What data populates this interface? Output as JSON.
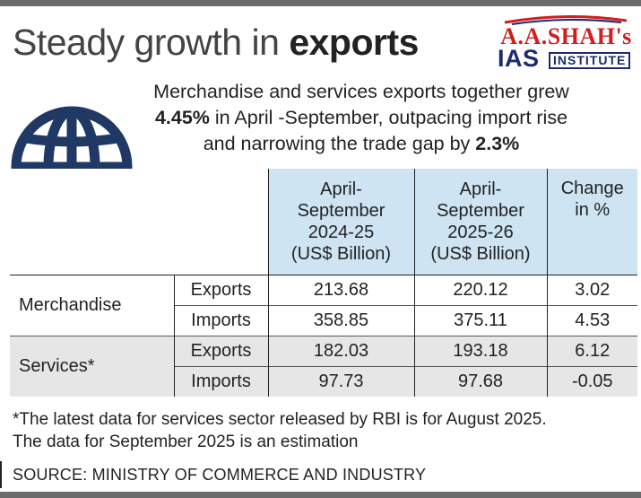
{
  "title": {
    "light": "Steady growth in",
    "bold": "exports"
  },
  "logo": {
    "top": "A.A.SHAH's",
    "ias": "IAS",
    "institute": "INSTITUTE"
  },
  "subtitle": {
    "line1": "Merchandise and services exports together grew",
    "pct1": "4.45%",
    "line2": " in April -September, outpacing import rise",
    "line3": "and narrowing the trade gap by ",
    "pct2": "2.3%"
  },
  "icon": "globe-with-exchange-arrows-icon",
  "chart_data": {
    "type": "table",
    "columns": [
      [
        "April-",
        "September",
        "2024-25",
        "(US$ Billion)"
      ],
      [
        "April-",
        "September",
        "2025-26",
        "(US$ Billion)"
      ],
      [
        "Change",
        "in %"
      ]
    ],
    "rows": [
      {
        "category": "Merchandise",
        "sub": "Exports",
        "values": [
          "213.68",
          "220.12",
          "3.02"
        ]
      },
      {
        "category": "Merchandise",
        "sub": "Imports",
        "values": [
          "358.85",
          "375.11",
          "4.53"
        ]
      },
      {
        "category": "Services*",
        "sub": "Exports",
        "values": [
          "182.03",
          "193.18",
          "6.12"
        ]
      },
      {
        "category": "Services*",
        "sub": "Imports",
        "values": [
          "97.73",
          "97.68",
          "-0.05"
        ]
      }
    ]
  },
  "note": {
    "line1": "*The latest data for services sector released by RBI is for August 2025.",
    "line2": "The data for September 2025 is an estimation"
  },
  "source": "SOURCE: MINISTRY OF COMMERCE AND INDUSTRY",
  "colors": {
    "header_fill": "#cfe4f2",
    "icon_navy": "#1f3864",
    "icon_blue": "#19a3e0",
    "logo_red": "#d21e1e",
    "logo_navy": "#1b2b6e",
    "services_fill": "#e6e6e6"
  }
}
